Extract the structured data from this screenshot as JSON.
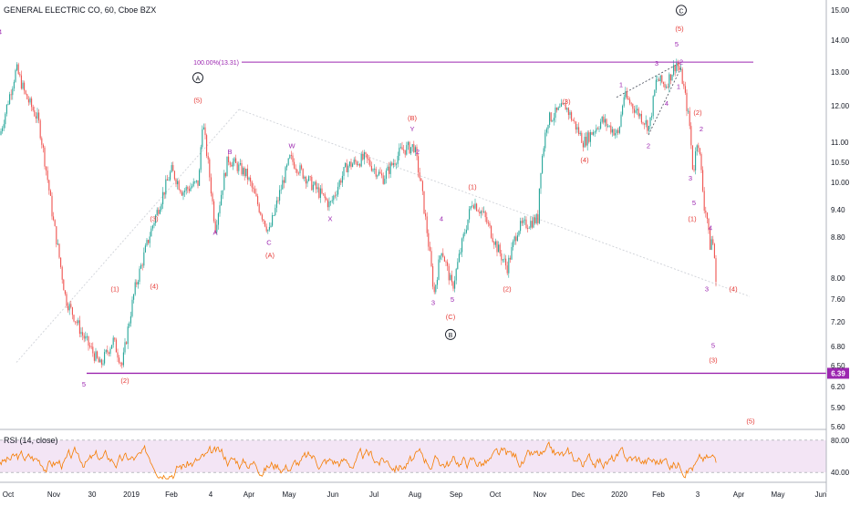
{
  "header": {
    "title": "GENERAL ELECTRIC CO, 60, Cboe BZX"
  },
  "rsi": {
    "title": "RSI (14, close)",
    "levels": [
      "80.00",
      "40.00"
    ]
  },
  "colors": {
    "wave_major": "#131722",
    "wave_red": "#e53935",
    "wave_purple": "#9c27b0",
    "fib_line": "#9c27b0",
    "support_line": "#9c27b0",
    "price_tag": "#9c27b0",
    "rsi_line": "#f57c00",
    "rsi_band": "#f3e5f5",
    "candle_up": "#26a69a",
    "candle_down": "#ef5350"
  },
  "chart_data": {
    "type": "candlestick",
    "title": "GENERAL ELECTRIC CO, 60, Cboe BZX",
    "y_axis_labels": [
      "15.00",
      "14.00",
      "13.00",
      "12.00",
      "11.00",
      "10.50",
      "10.00",
      "9.40",
      "8.80",
      "8.00",
      "7.60",
      "7.20",
      "6.80",
      "6.50",
      "6.20",
      "5.90",
      "5.60"
    ],
    "x_axis_labels": [
      "Oct",
      "Nov",
      "30",
      "2019",
      "Feb",
      "4",
      "Apr",
      "May",
      "Jun",
      "Jul",
      "Aug",
      "Sep",
      "Oct",
      "Nov",
      "Dec",
      "2020",
      "Feb",
      "3",
      "Apr",
      "May",
      "Jun"
    ],
    "price_path": [
      [
        0,
        11.2
      ],
      [
        18,
        13.1
      ],
      [
        28,
        12.3
      ],
      [
        42,
        11.6
      ],
      [
        58,
        9.2
      ],
      [
        72,
        7.6
      ],
      [
        90,
        7.0
      ],
      [
        110,
        6.5
      ],
      [
        124,
        6.9
      ],
      [
        134,
        6.5
      ],
      [
        148,
        7.8
      ],
      [
        168,
        9.1
      ],
      [
        188,
        10.3
      ],
      [
        200,
        9.8
      ],
      [
        218,
        10.0
      ],
      [
        222,
        11.6
      ],
      [
        236,
        9.0
      ],
      [
        250,
        10.6
      ],
      [
        270,
        10.2
      ],
      [
        285,
        9.4
      ],
      [
        295,
        8.9
      ],
      [
        318,
        10.6
      ],
      [
        340,
        10.0
      ],
      [
        362,
        9.5
      ],
      [
        380,
        10.4
      ],
      [
        400,
        10.6
      ],
      [
        420,
        10.1
      ],
      [
        440,
        10.8
      ],
      [
        454,
        10.9
      ],
      [
        462,
        9.9
      ],
      [
        476,
        7.7
      ],
      [
        484,
        8.6
      ],
      [
        496,
        7.8
      ],
      [
        518,
        9.6
      ],
      [
        530,
        9.3
      ],
      [
        545,
        8.6
      ],
      [
        556,
        8.2
      ],
      [
        568,
        9.0
      ],
      [
        590,
        9.2
      ],
      [
        592,
        10.2
      ],
      [
        600,
        11.6
      ],
      [
        620,
        12.0
      ],
      [
        640,
        11.0
      ],
      [
        660,
        11.6
      ],
      [
        678,
        11.2
      ],
      [
        684,
        12.3
      ],
      [
        700,
        11.8
      ],
      [
        712,
        11.4
      ],
      [
        720,
        12.8
      ],
      [
        730,
        12.6
      ],
      [
        742,
        13.31
      ],
      [
        748,
        12.8
      ],
      [
        756,
        11.5
      ],
      [
        760,
        10.2
      ],
      [
        765,
        11.2
      ],
      [
        772,
        9.5
      ],
      [
        775,
        9.3
      ],
      [
        778,
        8.6
      ],
      [
        781,
        8.8
      ],
      [
        784,
        8.3
      ],
      [
        786,
        7.4
      ],
      [
        784,
        6.9
      ],
      [
        786,
        7.1
      ]
    ],
    "rsi_range": [
      30,
      90
    ],
    "fib_level": {
      "label": "100.00%(13.31)",
      "value": 13.31
    },
    "support_level": {
      "label": "6.39",
      "value": 6.39
    },
    "wave_labels": [
      {
        "text": "A",
        "circled": true,
        "color": "major",
        "x": 217,
        "price": 12.75
      },
      {
        "text": "(5)",
        "color": "red",
        "x": 217,
        "price": 12.1
      },
      {
        "text": "B",
        "circled": true,
        "color": "major",
        "x": 494,
        "price": 6.95
      },
      {
        "text": "C",
        "circled": true,
        "color": "major",
        "x": 747,
        "price": 14.9
      },
      {
        "text": "(5)",
        "color": "red",
        "x": 745,
        "price": 14.3
      },
      {
        "text": "5",
        "color": "purple",
        "x": 742,
        "price": 13.8
      },
      {
        "text": "(B)",
        "color": "red",
        "x": 452,
        "price": 11.6
      },
      {
        "text": "Y",
        "color": "purple",
        "x": 452,
        "price": 11.3
      },
      {
        "text": "2",
        "color": "purple",
        "x": 458,
        "price": 10.7
      },
      {
        "text": "(C)",
        "color": "red",
        "x": 494,
        "price": 7.25
      },
      {
        "text": "(A)",
        "color": "red",
        "x": 296,
        "price": 8.4
      },
      {
        "text": "A",
        "color": "purple",
        "x": 236,
        "price": 8.85
      },
      {
        "text": "B",
        "color": "purple",
        "x": 252,
        "price": 10.7
      },
      {
        "text": "C",
        "color": "purple",
        "x": 295,
        "price": 8.65
      },
      {
        "text": "W",
        "color": "purple",
        "x": 320,
        "price": 10.85
      },
      {
        "text": "X",
        "color": "purple",
        "x": 362,
        "price": 9.15
      },
      {
        "text": "(1)",
        "color": "red",
        "x": 126,
        "price": 7.75
      },
      {
        "text": "(2)",
        "color": "red",
        "x": 137,
        "price": 6.25
      },
      {
        "text": "(3)",
        "color": "red",
        "x": 169,
        "price": 9.15
      },
      {
        "text": "(4)",
        "color": "red",
        "x": 169,
        "price": 7.8
      },
      {
        "text": "5",
        "color": "purple",
        "x": 92,
        "price": 6.2
      },
      {
        "text": "4",
        "color": "purple",
        "x": 0,
        "price": 14.2
      },
      {
        "text": "(1)",
        "color": "red",
        "x": 518,
        "price": 9.85
      },
      {
        "text": "(2)",
        "color": "red",
        "x": 556,
        "price": 7.75
      },
      {
        "text": "4",
        "color": "purple",
        "x": 484,
        "price": 9.15
      },
      {
        "text": "3",
        "color": "purple",
        "x": 475,
        "price": 7.5
      },
      {
        "text": "5",
        "color": "purple",
        "x": 496,
        "price": 7.55
      },
      {
        "text": "(3)",
        "color": "red",
        "x": 621,
        "price": 12.05
      },
      {
        "text": "(4)",
        "color": "red",
        "x": 641,
        "price": 10.5
      },
      {
        "text": "1",
        "color": "purple",
        "x": 681,
        "price": 12.55
      },
      {
        "text": "2",
        "color": "purple",
        "x": 711,
        "price": 10.85
      },
      {
        "text": "3",
        "color": "purple",
        "x": 720,
        "price": 13.2
      },
      {
        "text": "4",
        "color": "purple",
        "x": 731,
        "price": 12.0
      },
      {
        "text": "1",
        "color": "purple",
        "x": 744,
        "price": 12.5
      },
      {
        "text": "2",
        "color": "purple",
        "x": 747,
        "price": 13.25
      },
      {
        "text": "(2)",
        "color": "red",
        "x": 765,
        "price": 11.75
      },
      {
        "text": "2",
        "color": "purple",
        "x": 769,
        "price": 11.3
      },
      {
        "text": "3",
        "color": "purple",
        "x": 757,
        "price": 10.05
      },
      {
        "text": "5",
        "color": "purple",
        "x": 761,
        "price": 9.5
      },
      {
        "text": "(1)",
        "color": "red",
        "x": 759,
        "price": 9.15
      },
      {
        "text": "4",
        "color": "purple",
        "x": 779,
        "price": 8.95
      },
      {
        "text": "3",
        "color": "purple",
        "x": 775,
        "price": 7.75
      },
      {
        "text": "(4)",
        "color": "red",
        "x": 804,
        "price": 7.75
      },
      {
        "text": "5",
        "color": "purple",
        "x": 782,
        "price": 6.78
      },
      {
        "text": "(3)",
        "color": "red",
        "x": 782,
        "price": 6.55
      },
      {
        "text": "(5)",
        "color": "red",
        "x": 823,
        "price": 5.65
      }
    ],
    "trend_lines": [
      {
        "style": "dotted",
        "x1": 18,
        "p1": 6.55,
        "x2": 262,
        "p2": 11.9
      },
      {
        "style": "dotted",
        "x1": 262,
        "p1": 11.9,
        "x2": 822,
        "p2": 7.65
      },
      {
        "style": "dotted",
        "x1": 676,
        "p1": 12.25,
        "x2": 747,
        "p2": 13.31
      },
      {
        "style": "dotted",
        "x1": 711,
        "p1": 11.2,
        "x2": 747,
        "p2": 13.15
      }
    ]
  }
}
